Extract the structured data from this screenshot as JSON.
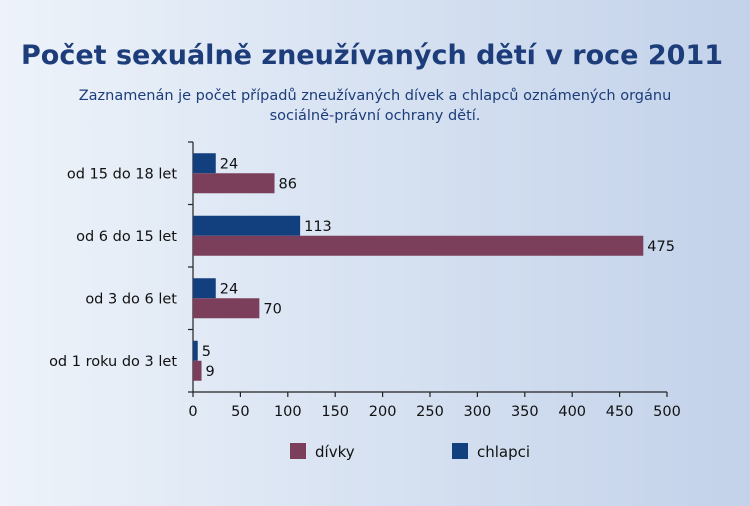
{
  "chart_data": {
    "type": "bar",
    "orientation": "horizontal",
    "title": "Počet sexuálně zneužívaných dětí v roce 2011",
    "subtitle_lines": [
      "Zaznamenán je počet případů zneužívaných dívek a chlapců oznámených orgánu",
      "sociálně-právní ochrany dětí."
    ],
    "categories": [
      "od 15 do 18 let",
      "od 6 do 15 let",
      "od 3 do 6 let",
      "od 1 roku do 3 let"
    ],
    "series": [
      {
        "name": "chlapci",
        "color": "#123f7e",
        "values": [
          24,
          113,
          24,
          5
        ]
      },
      {
        "name": "dívky",
        "color": "#7b3f5c",
        "values": [
          86,
          475,
          70,
          9
        ]
      }
    ],
    "xlim": [
      0,
      500
    ],
    "xticks": [
      0,
      50,
      100,
      150,
      200,
      250,
      300,
      350,
      400,
      450,
      500
    ],
    "grid": false,
    "legend_placement": "bottom",
    "legend_order": [
      "dívky",
      "chlapci"
    ]
  }
}
